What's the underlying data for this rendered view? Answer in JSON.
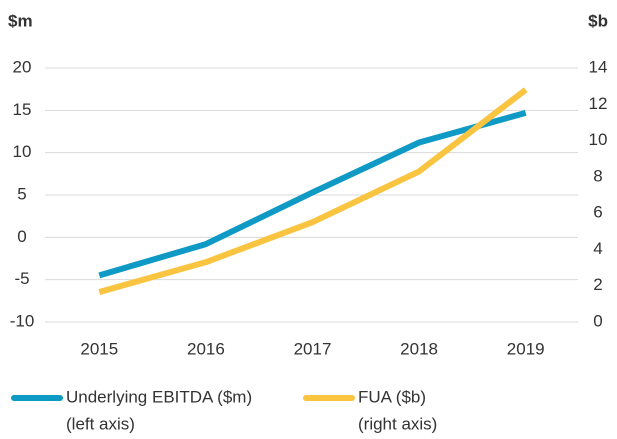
{
  "chart_data": {
    "type": "line",
    "y_label": "$m",
    "y2_label": "$b",
    "categories": [
      "2015",
      "2016",
      "2017",
      "2018",
      "2019"
    ],
    "series": [
      {
        "name": "Underlying EBITDA ($m)",
        "axis_note": "(left axis)",
        "color": "#0e9ac4",
        "axis": "y",
        "values": [
          -4.5,
          -0.8,
          5.3,
          11.2,
          14.7
        ]
      },
      {
        "name": "FUA ($b)",
        "axis_note": "(right axis)",
        "color": "#f9c440",
        "axis": "y2",
        "values": [
          1.65,
          3.3,
          5.5,
          8.3,
          12.8
        ]
      }
    ],
    "ylim": [
      -10,
      20
    ],
    "yticks": [
      -10,
      -5,
      0,
      5,
      10,
      15,
      20
    ],
    "y2lim": [
      0,
      14
    ],
    "y2ticks": [
      0,
      2,
      4,
      6,
      8,
      10,
      12,
      14
    ],
    "grid": true
  }
}
